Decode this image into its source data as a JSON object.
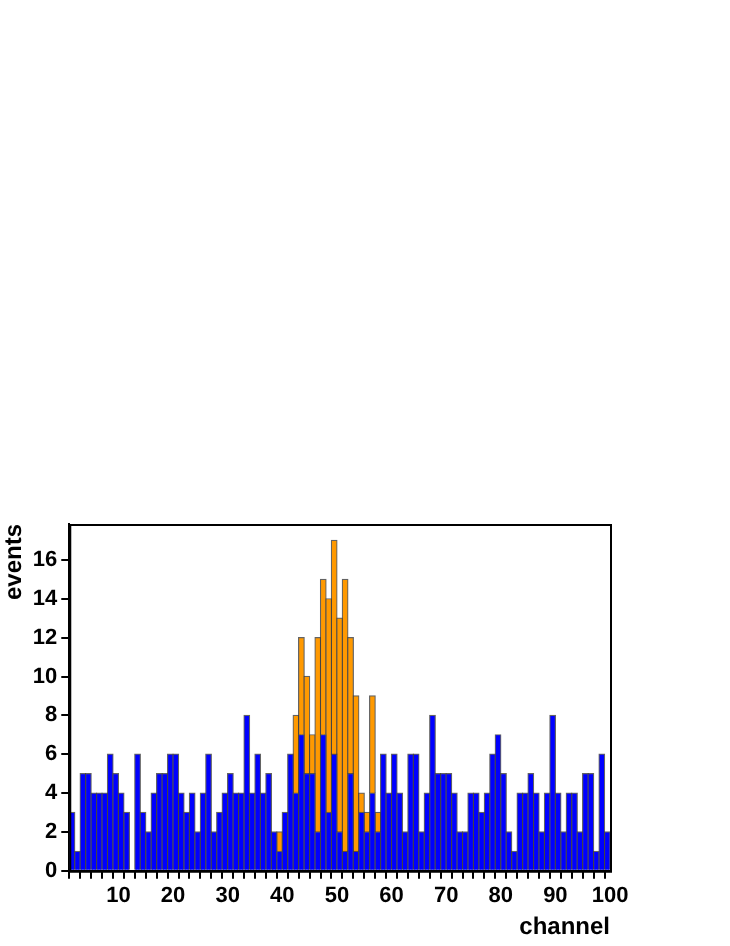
{
  "chart_data": {
    "type": "bar",
    "stacked": true,
    "xlabel": "channel",
    "ylabel": "events",
    "x": [
      1.5,
      2.5,
      3.5,
      4.5,
      5.5,
      6.5,
      7.5,
      8.5,
      9.5,
      10.5,
      11.5,
      12.5,
      13.5,
      14.5,
      15.5,
      16.5,
      17.5,
      18.5,
      19.5,
      20.5,
      21.5,
      22.5,
      23.5,
      24.5,
      25.5,
      26.5,
      27.5,
      28.5,
      29.5,
      30.5,
      31.5,
      32.5,
      33.5,
      34.5,
      35.5,
      36.5,
      37.5,
      38.5,
      39.5,
      40.5,
      41.5,
      42.5,
      43.5,
      44.5,
      45.5,
      46.5,
      47.5,
      48.5,
      49.5,
      50.5,
      51.5,
      52.5,
      53.5,
      54.5,
      55.5,
      56.5,
      57.5,
      58.5,
      59.5,
      60.5,
      61.5,
      62.5,
      63.5,
      64.5,
      65.5,
      66.5,
      67.5,
      68.5,
      69.5,
      70.5,
      71.5,
      72.5,
      73.5,
      74.5,
      75.5,
      76.5,
      77.5,
      78.5,
      79.5,
      80.5,
      81.5,
      82.5,
      83.5,
      84.5,
      85.5,
      86.5,
      87.5,
      88.5,
      89.5,
      90.5,
      91.5,
      92.5,
      93.5,
      94.5,
      95.5,
      96.5,
      97.5,
      98.5,
      99.5
    ],
    "series": [
      {
        "color": "#0000ff",
        "values": [
          3,
          1,
          5,
          5,
          4,
          4,
          4,
          6,
          5,
          4,
          3,
          0,
          6,
          3,
          2,
          4,
          5,
          5,
          6,
          6,
          4,
          3,
          4,
          2,
          4,
          6,
          2,
          3,
          4,
          5,
          4,
          4,
          8,
          4,
          6,
          4,
          5,
          2,
          1,
          3,
          6,
          4,
          7,
          5,
          5,
          2,
          7,
          3,
          6,
          2,
          1,
          5,
          1,
          3,
          2,
          4,
          2,
          6,
          4,
          6,
          4,
          2,
          6,
          6,
          2,
          4,
          8,
          5,
          5,
          5,
          4,
          2,
          2,
          4,
          4,
          3,
          4,
          6,
          7,
          5,
          2,
          1,
          4,
          4,
          5,
          4,
          2,
          4,
          8,
          4,
          2,
          4,
          4,
          2,
          5,
          5,
          1,
          6,
          2
        ]
      },
      {
        "color": "#ff9900",
        "values": [
          0,
          0,
          0,
          0,
          0,
          0,
          0,
          0,
          0,
          0,
          0,
          0,
          0,
          0,
          0,
          0,
          0,
          0,
          0,
          0,
          0,
          0,
          0,
          0,
          0,
          0,
          0,
          0,
          0,
          0,
          0,
          0,
          0,
          0,
          0,
          0,
          0,
          0,
          1,
          0,
          0,
          4,
          5,
          5,
          2,
          10,
          8,
          11,
          11,
          11,
          14,
          7,
          8,
          1,
          1,
          5,
          1,
          0,
          0,
          0,
          0,
          0,
          0,
          0,
          0,
          0,
          0,
          0,
          0,
          0,
          0,
          0,
          0,
          0,
          0,
          0,
          0,
          0,
          0,
          0,
          0,
          0,
          0,
          0,
          0,
          0,
          0,
          0,
          0,
          0,
          0,
          0,
          0,
          0,
          0,
          0,
          0,
          0,
          0
        ]
      }
    ],
    "xlim": [
      1,
      100
    ],
    "xticks": [
      {
        "value": 2,
        "label": null
      },
      {
        "value": 4,
        "label": null
      },
      {
        "value": 6,
        "label": null
      },
      {
        "value": 8,
        "label": null
      },
      10,
      {
        "value": 12,
        "label": null
      },
      {
        "value": 14,
        "label": null
      },
      {
        "value": 16,
        "label": null
      },
      {
        "value": 18,
        "label": null
      },
      20,
      {
        "value": 22,
        "label": null
      },
      {
        "value": 24,
        "label": null
      },
      {
        "value": 26,
        "label": null
      },
      {
        "value": 28,
        "label": null
      },
      30,
      {
        "value": 32,
        "label": null
      },
      {
        "value": 34,
        "label": null
      },
      {
        "value": 36,
        "label": null
      },
      {
        "value": 38,
        "label": null
      },
      40,
      {
        "value": 42,
        "label": null
      },
      {
        "value": 44,
        "label": null
      },
      {
        "value": 46,
        "label": null
      },
      {
        "value": 48,
        "label": null
      },
      50,
      {
        "value": 52,
        "label": null
      },
      {
        "value": 54,
        "label": null
      },
      {
        "value": 56,
        "label": null
      },
      {
        "value": 58,
        "label": null
      },
      60,
      {
        "value": 62,
        "label": null
      },
      {
        "value": 64,
        "label": null
      },
      {
        "value": 66,
        "label": null
      },
      {
        "value": 68,
        "label": null
      },
      70,
      {
        "value": 72,
        "label": null
      },
      {
        "value": 74,
        "label": null
      },
      {
        "value": 76,
        "label": null
      },
      {
        "value": 78,
        "label": null
      },
      80,
      {
        "value": 82,
        "label": null
      },
      {
        "value": 84,
        "label": null
      },
      {
        "value": 86,
        "label": null
      },
      {
        "value": 88,
        "label": null
      },
      90,
      {
        "value": 92,
        "label": null
      },
      {
        "value": 94,
        "label": null
      },
      {
        "value": 96,
        "label": null
      },
      {
        "value": 98,
        "label": null
      },
      100
    ],
    "ylim": [
      0,
      17.85
    ],
    "yticks": [
      0,
      2,
      4,
      6,
      8,
      10,
      12,
      14,
      16
    ],
    "grid": false,
    "legend": false
  }
}
